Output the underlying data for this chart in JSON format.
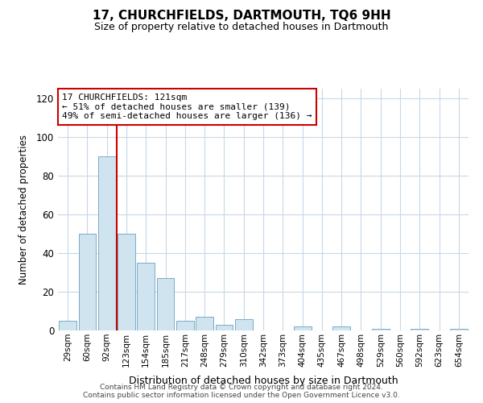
{
  "title": "17, CHURCHFIELDS, DARTMOUTH, TQ6 9HH",
  "subtitle": "Size of property relative to detached houses in Dartmouth",
  "xlabel": "Distribution of detached houses by size in Dartmouth",
  "ylabel": "Number of detached properties",
  "categories": [
    "29sqm",
    "60sqm",
    "92sqm",
    "123sqm",
    "154sqm",
    "185sqm",
    "217sqm",
    "248sqm",
    "279sqm",
    "310sqm",
    "342sqm",
    "373sqm",
    "404sqm",
    "435sqm",
    "467sqm",
    "498sqm",
    "529sqm",
    "560sqm",
    "592sqm",
    "623sqm",
    "654sqm"
  ],
  "values": [
    5,
    50,
    90,
    50,
    35,
    27,
    5,
    7,
    3,
    6,
    0,
    0,
    2,
    0,
    2,
    0,
    1,
    0,
    1,
    0,
    1
  ],
  "bar_color": "#d0e4f0",
  "bar_edge_color": "#7aaac8",
  "vline_color": "#cc0000",
  "vline_x": 2.5,
  "annotation_lines": [
    "17 CHURCHFIELDS: 121sqm",
    "← 51% of detached houses are smaller (139)",
    "49% of semi-detached houses are larger (136) →"
  ],
  "annotation_box_edgecolor": "#cc0000",
  "ylim": [
    0,
    125
  ],
  "yticks": [
    0,
    20,
    40,
    60,
    80,
    100,
    120
  ],
  "grid_color": "#c8d8e8",
  "bg_color": "#ffffff",
  "footer_line1": "Contains HM Land Registry data © Crown copyright and database right 2024.",
  "footer_line2": "Contains public sector information licensed under the Open Government Licence v3.0."
}
